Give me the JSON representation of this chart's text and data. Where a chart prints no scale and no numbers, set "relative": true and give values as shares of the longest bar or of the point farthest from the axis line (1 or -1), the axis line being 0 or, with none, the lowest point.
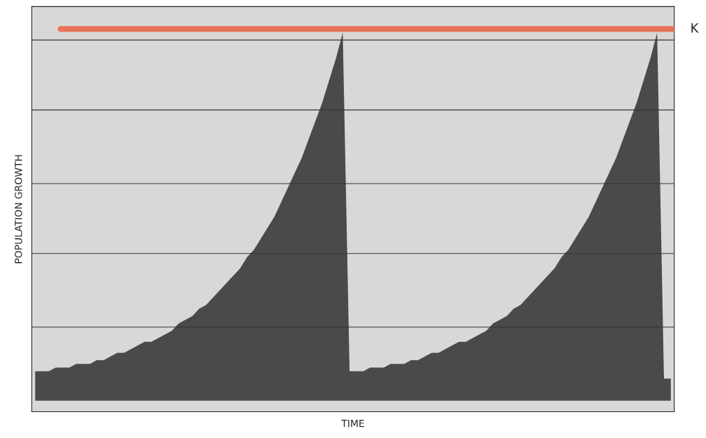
{
  "chart_data": {
    "type": "area",
    "relative": true,
    "xlabel": "TIME",
    "ylabel": "POPULATION GROWTH",
    "tick_labels": false,
    "categories": [
      null,
      null,
      null,
      null,
      null,
      null,
      null,
      null,
      null,
      null,
      null,
      null,
      null,
      null,
      null,
      null,
      null,
      null,
      null,
      null,
      null,
      null,
      null,
      null,
      null,
      null,
      null,
      null,
      null,
      null,
      null,
      null,
      null,
      null,
      null,
      null,
      null,
      null,
      null,
      null,
      null,
      null,
      null,
      null,
      null,
      null,
      null,
      null,
      null,
      null,
      null,
      null,
      null,
      null,
      null,
      null,
      null,
      null,
      null,
      null,
      null,
      null,
      null,
      null,
      null,
      null,
      null,
      null,
      null,
      null,
      null,
      null,
      null,
      null,
      null,
      null,
      null,
      null,
      null,
      null,
      null,
      null,
      null,
      null,
      null,
      null,
      null,
      null,
      null,
      null,
      null,
      null,
      null,
      null
    ],
    "series": [
      {
        "color": "#4a4a4a",
        "values": [
          0.08,
          0.08,
          0.08,
          0.09,
          0.09,
          0.09,
          0.1,
          0.1,
          0.1,
          0.11,
          0.11,
          0.12,
          0.13,
          0.13,
          0.14,
          0.15,
          0.16,
          0.16,
          0.17,
          0.18,
          0.19,
          0.21,
          0.22,
          0.23,
          0.25,
          0.26,
          0.28,
          0.3,
          0.32,
          0.34,
          0.36,
          0.39,
          0.41,
          0.44,
          0.47,
          0.5,
          0.54,
          0.58,
          0.62,
          0.66,
          0.71,
          0.76,
          0.81,
          0.87,
          0.93,
          1.0,
          0.08,
          0.08,
          0.08,
          0.09,
          0.09,
          0.09,
          0.1,
          0.1,
          0.1,
          0.11,
          0.11,
          0.12,
          0.13,
          0.13,
          0.14,
          0.15,
          0.16,
          0.16,
          0.17,
          0.18,
          0.19,
          0.21,
          0.22,
          0.23,
          0.25,
          0.26,
          0.28,
          0.3,
          0.32,
          0.34,
          0.36,
          0.39,
          0.41,
          0.44,
          0.47,
          0.5,
          0.54,
          0.58,
          0.62,
          0.66,
          0.71,
          0.76,
          0.81,
          0.87,
          0.93,
          1.0,
          0.06,
          0.06
        ]
      }
    ],
    "ref_lines": [
      {
        "axis": "y",
        "value": 1.01,
        "label": "K",
        "color": "#e8735a"
      },
      {
        "axis": "y",
        "value": 0.98,
        "color": "#333333"
      },
      {
        "axis": "y",
        "value": 0.79,
        "color": "#333333"
      },
      {
        "axis": "y",
        "value": 0.59,
        "color": "#333333"
      },
      {
        "axis": "y",
        "value": 0.4,
        "color": "#333333"
      },
      {
        "axis": "y",
        "value": 0.2,
        "color": "#333333"
      }
    ]
  }
}
